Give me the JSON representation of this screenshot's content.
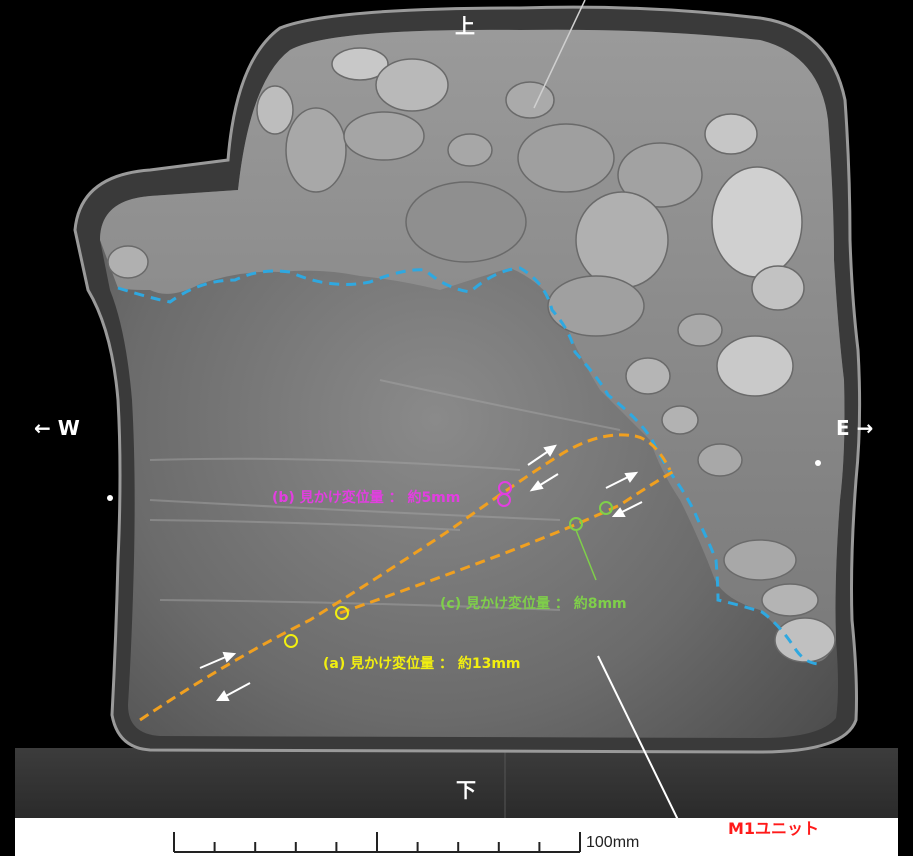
{
  "orientation": {
    "top": "上",
    "bottom": "下",
    "west": "← W",
    "east": "E →"
  },
  "annotations": {
    "b": "(b) 見かけ変位量 ： 約5mm",
    "c": "(c) 見かけ変位量 ： 約8mm",
    "a": "(a) 見かけ変位量 ： 約13mm",
    "unit": "M1ユニット"
  },
  "scale_bar": {
    "label": "100mm"
  },
  "colors": {
    "fault_line": "#f0a020",
    "boundary": "#2fa8e0",
    "marker_b": "#e23ee0",
    "marker_c": "#7fcf4a",
    "marker_a": "#f2ef10",
    "unit_label": "#ff1a1a"
  }
}
